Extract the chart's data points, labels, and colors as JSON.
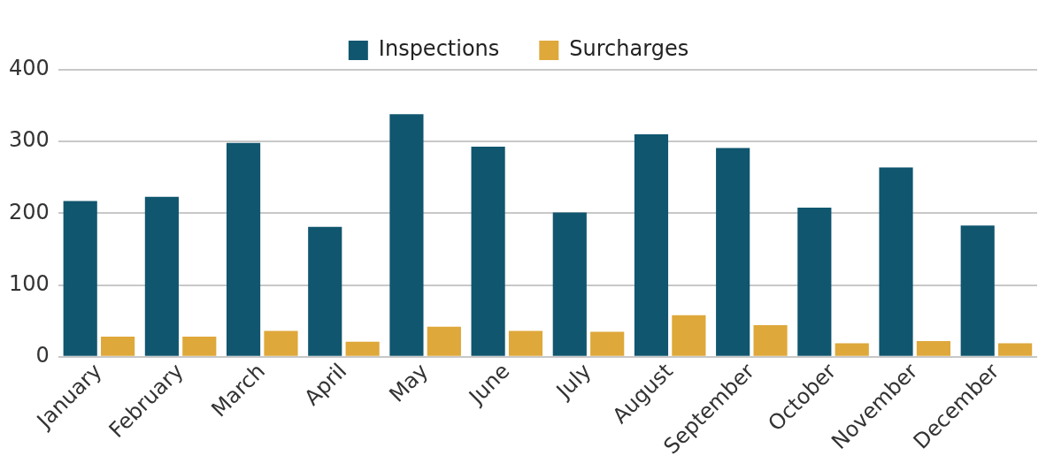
{
  "chart_data": {
    "type": "bar",
    "categories": [
      "January",
      "February",
      "March",
      "April",
      "May",
      "June",
      "July",
      "August",
      "September",
      "October",
      "November",
      "December"
    ],
    "series": [
      {
        "name": "Inspections",
        "color": "#10566f",
        "values": [
          217,
          223,
          298,
          181,
          338,
          293,
          201,
          310,
          291,
          208,
          264,
          183
        ]
      },
      {
        "name": "Surcharges",
        "color": "#dea83a",
        "values": [
          28,
          28,
          36,
          21,
          42,
          36,
          35,
          58,
          44,
          19,
          22,
          19
        ]
      }
    ],
    "ylim": [
      0,
      400
    ],
    "yticks": [
      0,
      100,
      200,
      300,
      400
    ],
    "grid": "y",
    "legend": "top"
  }
}
